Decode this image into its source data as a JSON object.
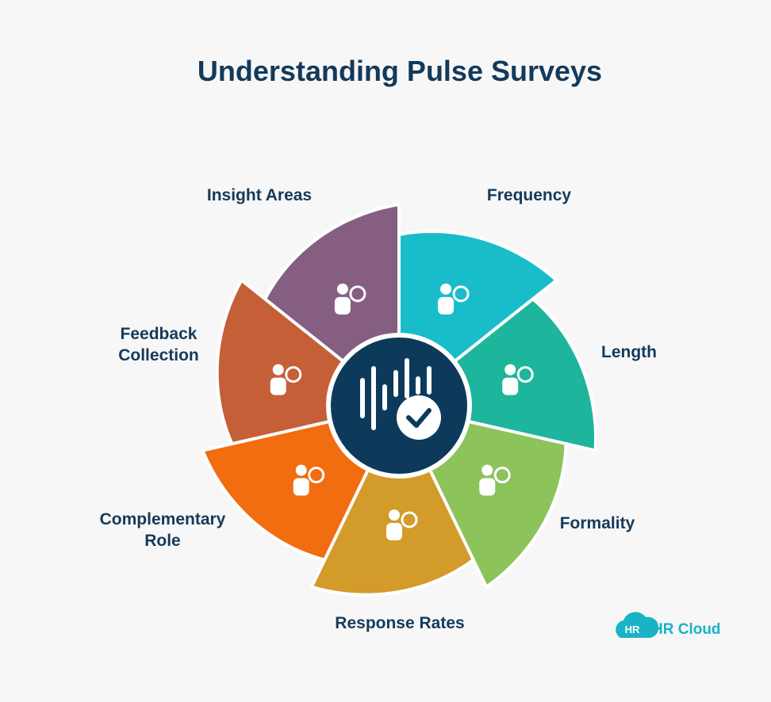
{
  "title": "Understanding Pulse Surveys",
  "segments": [
    {
      "label": [
        "Frequency"
      ],
      "color": "#19bdca"
    },
    {
      "label": [
        "Length"
      ],
      "color": "#1db59c"
    },
    {
      "label": [
        "Formality"
      ],
      "color": "#8cc35b"
    },
    {
      "label": [
        "Response Rates"
      ],
      "color": "#d39b29"
    },
    {
      "label": [
        "Complementary",
        "Role"
      ],
      "color": "#f26c10"
    },
    {
      "label": [
        "Feedback",
        "Collection"
      ],
      "color": "#c45f38"
    },
    {
      "label": [
        "Insight Areas"
      ],
      "color": "#855e82"
    }
  ],
  "logo": {
    "badge": "HR",
    "name": "HR Cloud"
  }
}
